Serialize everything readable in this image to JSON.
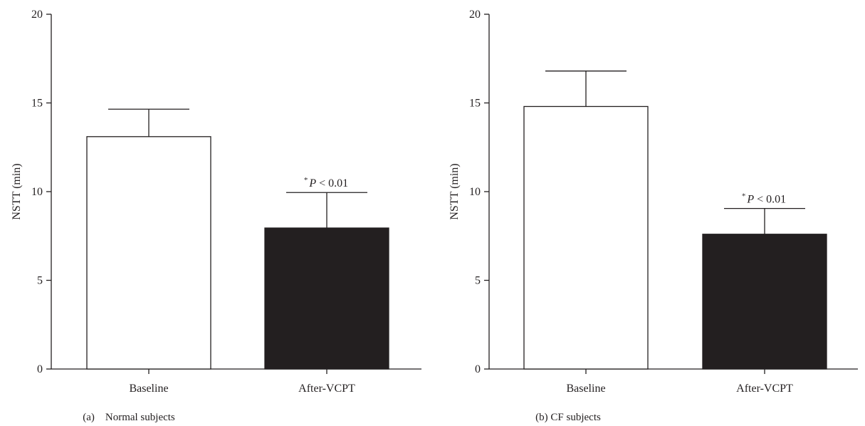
{
  "chart_data": [
    {
      "type": "bar",
      "caption": "(a) Normal subjects",
      "ylabel": "NSTT (min)",
      "ylim": [
        0,
        20
      ],
      "yticks": [
        0,
        5,
        10,
        15,
        20
      ],
      "categories": [
        "Baseline",
        "After-VCPT"
      ],
      "values": [
        13.1,
        7.95
      ],
      "errors": [
        1.55,
        2.0
      ],
      "fill_colors": [
        "#ffffff",
        "#231f20"
      ],
      "annotations": [
        {
          "category": "After-VCPT",
          "prefix": "*",
          "p": "P",
          "text": " < 0.01"
        }
      ]
    },
    {
      "type": "bar",
      "caption": "(b)  CF subjects",
      "ylabel": "NSTT (min)",
      "ylim": [
        0,
        20
      ],
      "yticks": [
        0,
        5,
        10,
        15,
        20
      ],
      "categories": [
        "Baseline",
        "After-VCPT"
      ],
      "values": [
        14.8,
        7.6
      ],
      "errors": [
        2.0,
        1.45
      ],
      "fill_colors": [
        "#ffffff",
        "#231f20"
      ],
      "annotations": [
        {
          "category": "After-VCPT",
          "prefix": "*",
          "p": "P",
          "text": " < 0.01"
        }
      ]
    }
  ]
}
